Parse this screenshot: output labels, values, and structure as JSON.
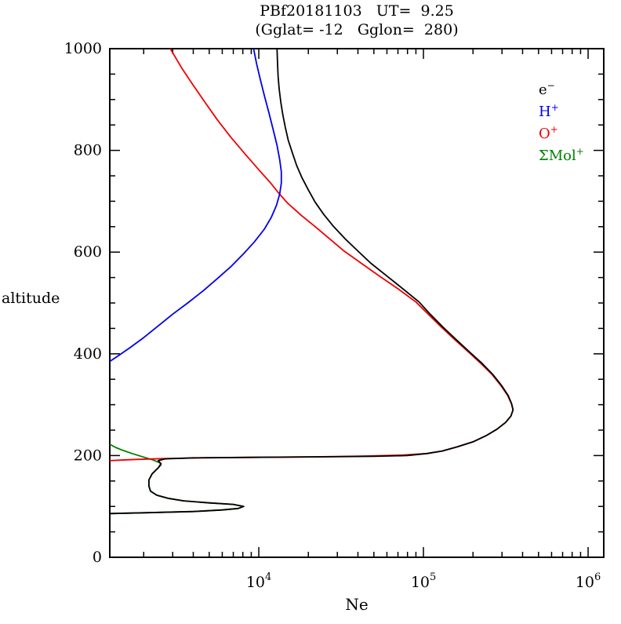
{
  "chart_data": {
    "type": "line",
    "title": "PBf20181103   UT=  9.25",
    "subtitle": "(Gglat= -12   Gglon=  280)",
    "xlabel": "Ne",
    "ylabel": "altitude",
    "x_scale": "log",
    "x_log_range": [
      3.095,
      6.095
    ],
    "x_major_ticks": [
      {
        "value": 10000,
        "base": "10",
        "exp": "4"
      },
      {
        "value": 100000,
        "base": "10",
        "exp": "5"
      },
      {
        "value": 1000000,
        "base": "10",
        "exp": "6"
      }
    ],
    "ylim": [
      0,
      1000
    ],
    "y_major_step": 200,
    "y_minor_step": 50,
    "y_tick_labels": [
      "0",
      "200",
      "400",
      "600",
      "800",
      "1000"
    ],
    "grid": false,
    "legend_position": "upper-right",
    "series": [
      {
        "name": "e-",
        "label_base": "e",
        "label_sup": "−",
        "color": "#000000",
        "points": [
          [
            1245,
            86
          ],
          [
            2000,
            87.5
          ],
          [
            4000,
            90
          ],
          [
            6000,
            93
          ],
          [
            7500,
            96
          ],
          [
            8100,
            100
          ],
          [
            7000,
            104
          ],
          [
            5000,
            107
          ],
          [
            3500,
            111
          ],
          [
            2800,
            116
          ],
          [
            2400,
            122
          ],
          [
            2200,
            130
          ],
          [
            2150,
            140
          ],
          [
            2150,
            152
          ],
          [
            2250,
            164
          ],
          [
            2450,
            176
          ],
          [
            2550,
            184
          ],
          [
            2450,
            190
          ],
          [
            2700,
            193.5
          ],
          [
            4000,
            195.5
          ],
          [
            9000,
            196.5
          ],
          [
            25000,
            197.5
          ],
          [
            50000,
            198.5
          ],
          [
            80000,
            200
          ],
          [
            105000,
            204
          ],
          [
            130000,
            209
          ],
          [
            160000,
            217
          ],
          [
            200000,
            227
          ],
          [
            240000,
            239
          ],
          [
            280000,
            252
          ],
          [
            315000,
            265
          ],
          [
            340000,
            278
          ],
          [
            350000,
            290
          ],
          [
            343000,
            302
          ],
          [
            327000,
            318
          ],
          [
            298000,
            338
          ],
          [
            263000,
            360
          ],
          [
            224000,
            383
          ],
          [
            193000,
            402
          ],
          [
            158000,
            428
          ],
          [
            131000,
            453
          ],
          [
            110000,
            478
          ],
          [
            94000,
            502
          ],
          [
            75000,
            528
          ],
          [
            60000,
            553
          ],
          [
            48000,
            578
          ],
          [
            40000,
            602
          ],
          [
            33500,
            626
          ],
          [
            28500,
            650
          ],
          [
            24800,
            674
          ],
          [
            22000,
            698
          ],
          [
            20000,
            722
          ],
          [
            18300,
            746
          ],
          [
            17000,
            770
          ],
          [
            16000,
            795
          ],
          [
            15100,
            820
          ],
          [
            14500,
            845
          ],
          [
            14000,
            870
          ],
          [
            13600,
            895
          ],
          [
            13300,
            920
          ],
          [
            13100,
            945
          ],
          [
            13000,
            970
          ],
          [
            12900,
            1000
          ]
        ]
      },
      {
        "name": "H+",
        "label_base": "H",
        "label_sup": "+",
        "color": "#0000ee",
        "points": [
          [
            1245,
            385
          ],
          [
            1400,
            396
          ],
          [
            1650,
            412
          ],
          [
            2000,
            432
          ],
          [
            2450,
            455
          ],
          [
            3000,
            478
          ],
          [
            3700,
            500
          ],
          [
            4600,
            524
          ],
          [
            5600,
            548
          ],
          [
            6800,
            572
          ],
          [
            8100,
            597
          ],
          [
            9400,
            620
          ],
          [
            10800,
            645
          ],
          [
            11900,
            668
          ],
          [
            12800,
            692
          ],
          [
            13400,
            714
          ],
          [
            13700,
            736
          ],
          [
            13700,
            758
          ],
          [
            13400,
            782
          ],
          [
            12900,
            810
          ],
          [
            12200,
            842
          ],
          [
            11500,
            875
          ],
          [
            10800,
            908
          ],
          [
            10200,
            940
          ],
          [
            9700,
            970
          ],
          [
            9300,
            1000
          ]
        ]
      },
      {
        "name": "O+",
        "label_base": "O",
        "label_sup": "+",
        "color": "#ee0000",
        "points": [
          [
            1245,
            190
          ],
          [
            1450,
            191
          ],
          [
            1800,
            192.5
          ],
          [
            2600,
            194
          ],
          [
            4500,
            195.5
          ],
          [
            9000,
            196.5
          ],
          [
            22000,
            197.5
          ],
          [
            45000,
            199
          ],
          [
            75000,
            201
          ],
          [
            105000,
            204
          ],
          [
            130000,
            209
          ],
          [
            160000,
            217
          ],
          [
            200000,
            227
          ],
          [
            240000,
            239
          ],
          [
            280000,
            252
          ],
          [
            315000,
            265
          ],
          [
            340000,
            278
          ],
          [
            350000,
            290
          ],
          [
            342000,
            302
          ],
          [
            325000,
            318
          ],
          [
            295000,
            338
          ],
          [
            260000,
            360
          ],
          [
            220000,
            383
          ],
          [
            190000,
            402
          ],
          [
            155000,
            428
          ],
          [
            128000,
            453
          ],
          [
            107000,
            478
          ],
          [
            90000,
            502
          ],
          [
            70000,
            528
          ],
          [
            54000,
            553
          ],
          [
            42000,
            578
          ],
          [
            33000,
            602
          ],
          [
            27000,
            626
          ],
          [
            22000,
            650
          ],
          [
            18000,
            673
          ],
          [
            15000,
            696
          ],
          [
            13200,
            716
          ],
          [
            11800,
            736
          ],
          [
            10000,
            762
          ],
          [
            8300,
            792
          ],
          [
            6800,
            825
          ],
          [
            5600,
            860
          ],
          [
            4700,
            895
          ],
          [
            4000,
            928
          ],
          [
            3400,
            962
          ],
          [
            2900,
            1000
          ]
        ]
      },
      {
        "name": "Mol+",
        "label_base": "ΣMol",
        "label_sup": "+",
        "color": "#008000",
        "points": [
          [
            1245,
            222
          ],
          [
            1350,
            216
          ],
          [
            1500,
            210
          ],
          [
            1700,
            204
          ],
          [
            1950,
            198
          ],
          [
            2250,
            192
          ],
          [
            2500,
            186
          ],
          [
            2550,
            182
          ],
          [
            2450,
            176
          ],
          [
            2250,
            164
          ],
          [
            2150,
            152
          ],
          [
            2150,
            140
          ],
          [
            2200,
            130
          ],
          [
            2400,
            122
          ],
          [
            2800,
            116
          ],
          [
            3500,
            111
          ],
          [
            5000,
            107
          ],
          [
            7000,
            104
          ],
          [
            8100,
            100
          ],
          [
            7500,
            96
          ],
          [
            6000,
            93
          ],
          [
            4000,
            90
          ],
          [
            2000,
            87.5
          ],
          [
            1245,
            86
          ]
        ]
      }
    ]
  }
}
